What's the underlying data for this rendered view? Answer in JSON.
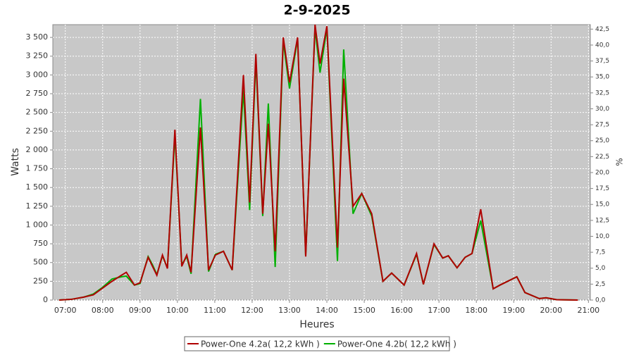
{
  "chart_data": {
    "type": "line",
    "title": "2-9-2025",
    "x_label": "Heures",
    "y_label": "Watts",
    "y2_label": "%",
    "xlim": [
      "06:40",
      "21:03"
    ],
    "xticks": [
      "07:00",
      "08:00",
      "09:00",
      "10:00",
      "11:00",
      "12:00",
      "13:00",
      "14:00",
      "15:00",
      "16:00",
      "17:00",
      "18:00",
      "19:00",
      "20:00",
      "21:00"
    ],
    "ylim": [
      0,
      3670
    ],
    "yticks": [
      0,
      250,
      500,
      750,
      {
        "value": 1000,
        "label": "1 000"
      },
      {
        "value": 1250,
        "label": "1 250"
      },
      {
        "value": 1500,
        "label": "1 500"
      },
      {
        "value": 1750,
        "label": "1 750"
      },
      {
        "value": 2000,
        "label": "2 000"
      },
      {
        "value": 2250,
        "label": "2 250"
      },
      {
        "value": 2500,
        "label": "2 500"
      },
      {
        "value": 2750,
        "label": "2 750"
      },
      {
        "value": 3000,
        "label": "3 000"
      },
      {
        "value": 3250,
        "label": "3 250"
      },
      {
        "value": 3500,
        "label": "3 500"
      }
    ],
    "y2lim": [
      0,
      43.2
    ],
    "y2ticks": [
      {
        "value": 0,
        "label": "0,0"
      },
      {
        "value": 2.5,
        "label": "2,5"
      },
      {
        "value": 5,
        "label": "5,0"
      },
      {
        "value": 7.5,
        "label": "7,5"
      },
      {
        "value": 10,
        "label": "10,0"
      },
      {
        "value": 12.5,
        "label": "12,5"
      },
      {
        "value": 15,
        "label": "15,0"
      },
      {
        "value": 17.5,
        "label": "17,5"
      },
      {
        "value": 20,
        "label": "20,0"
      },
      {
        "value": 22.5,
        "label": "22,5"
      },
      {
        "value": 25,
        "label": "25,0"
      },
      {
        "value": 27.5,
        "label": "27,5"
      },
      {
        "value": 30,
        "label": "30,0"
      },
      {
        "value": 32.5,
        "label": "32,5"
      },
      {
        "value": 35,
        "label": "35,0"
      },
      {
        "value": 37.5,
        "label": "37,5"
      },
      {
        "value": 40,
        "label": "40,0"
      },
      {
        "value": 42.5,
        "label": "42,5"
      }
    ],
    "grid": true,
    "x": [
      "06:50",
      "07:10",
      "07:30",
      "07:45",
      "08:00",
      "08:15",
      "08:30",
      "08:38",
      "08:51",
      "09:00",
      "09:13",
      "09:20",
      "09:27",
      "09:36",
      "09:44",
      "09:56",
      "10:07",
      "10:15",
      "10:22",
      "10:37",
      "10:50",
      "11:01",
      "11:14",
      "11:28",
      "11:46",
      "11:56",
      "12:06",
      "12:17",
      "12:26",
      "12:37",
      "12:50",
      "13:00",
      "13:13",
      "13:26",
      "13:41",
      "13:49",
      "14:00",
      "14:17",
      "14:27",
      "14:42",
      "14:56",
      "15:12",
      "15:30",
      "15:44",
      "16:04",
      "16:24",
      "16:35",
      "16:52",
      "17:06",
      "17:15",
      "17:29",
      "17:42",
      "17:53",
      "18:07",
      "18:27",
      "18:38",
      "19:05",
      "19:18",
      "19:41",
      "19:52",
      "20:09",
      "20:43"
    ],
    "series": [
      {
        "name": "Power-One 4.2a( 12,2 kWh )",
        "color": "#b00000",
        "values": [
          0,
          10,
          40,
          70,
          160,
          250,
          330,
          370,
          200,
          230,
          570,
          450,
          330,
          600,
          420,
          2270,
          450,
          600,
          370,
          2300,
          400,
          600,
          650,
          400,
          3000,
          1300,
          3280,
          1150,
          2350,
          650,
          3500,
          2900,
          3500,
          580,
          3670,
          3150,
          3650,
          700,
          2950,
          1250,
          1420,
          1150,
          250,
          360,
          200,
          620,
          210,
          750,
          560,
          590,
          430,
          570,
          620,
          1210,
          150,
          200,
          310,
          100,
          20,
          30,
          5,
          0
        ]
      },
      {
        "name": "Power-One 4.2b( 12,2 kWh )",
        "color": "#00b000",
        "values": [
          0,
          10,
          40,
          80,
          170,
          280,
          310,
          320,
          200,
          220,
          580,
          470,
          340,
          590,
          430,
          2200,
          470,
          580,
          350,
          2680,
          380,
          610,
          650,
          400,
          2800,
          1200,
          3200,
          1120,
          2620,
          440,
          3450,
          2820,
          3480,
          600,
          3620,
          3030,
          3620,
          520,
          3340,
          1150,
          1420,
          1120,
          250,
          360,
          200,
          610,
          210,
          740,
          560,
          590,
          430,
          570,
          620,
          1060,
          150,
          200,
          310,
          100,
          20,
          30,
          5,
          0
        ]
      }
    ]
  }
}
